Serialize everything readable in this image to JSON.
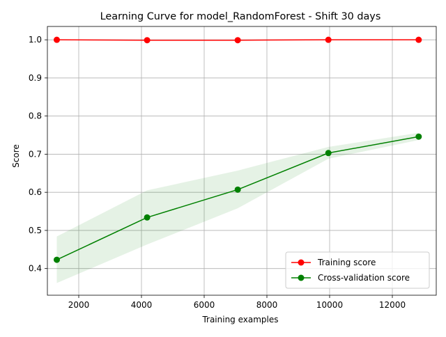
{
  "chart_data": {
    "type": "line",
    "title": "Learning Curve for model_RandomForest - Shift 30 days",
    "xlabel": "Training examples",
    "ylabel": "Score",
    "xlim": [
      1000,
      13400
    ],
    "ylim": [
      0.33,
      1.035
    ],
    "xticks": [
      2000,
      4000,
      6000,
      8000,
      10000,
      12000
    ],
    "yticks": [
      0.4,
      0.5,
      0.6,
      0.7,
      0.8,
      0.9,
      1.0
    ],
    "grid": true,
    "legend_position": "lower-right",
    "x": [
      1300,
      4180,
      7070,
      9960,
      12840
    ],
    "series": [
      {
        "name": "Training score",
        "color": "#ff0000",
        "marker": "circle",
        "values": [
          1.0,
          0.999,
          0.999,
          1.0,
          1.0
        ],
        "band_lower": [
          0.999,
          0.998,
          0.998,
          0.999,
          0.999
        ],
        "band_upper": [
          1.001,
          1.0,
          1.0,
          1.001,
          1.001
        ],
        "band_color": "#ff0000"
      },
      {
        "name": "Cross-validation score",
        "color": "#008000",
        "marker": "circle",
        "values": [
          0.423,
          0.534,
          0.607,
          0.703,
          0.746
        ],
        "band_lower": [
          0.362,
          0.463,
          0.558,
          0.688,
          0.737
        ],
        "band_upper": [
          0.484,
          0.605,
          0.657,
          0.719,
          0.756
        ],
        "band_color": "#008000"
      }
    ]
  }
}
